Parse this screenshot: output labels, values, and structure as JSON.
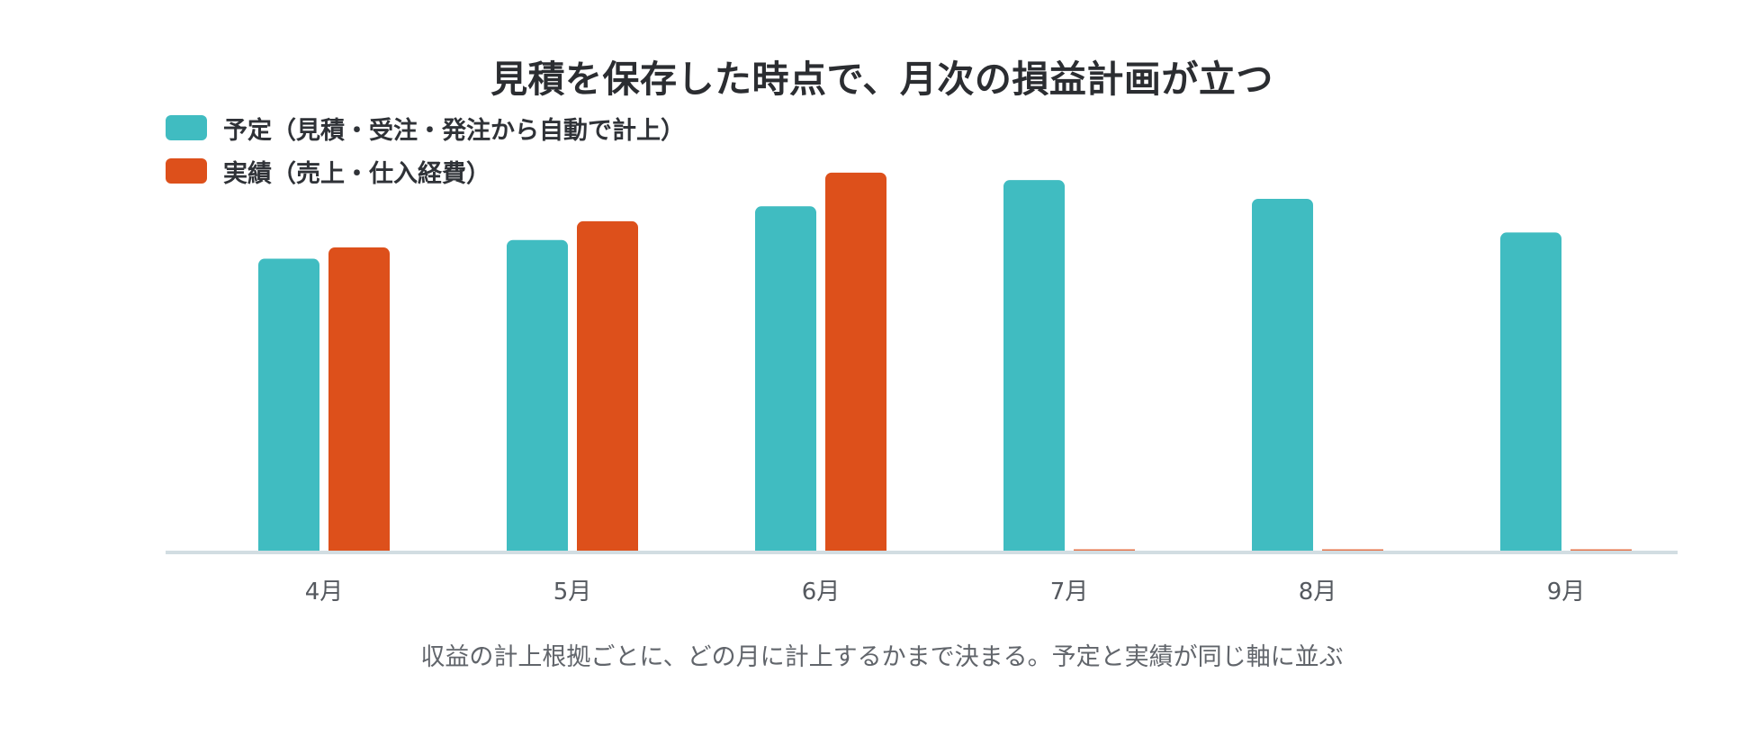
{
  "chart_data": {
    "type": "bar",
    "title": "見積を保存した時点で、月次の損益計画が立つ",
    "subtitle": "収益の計上根拠ごとに、どの月に計上するかまで決まる。予定と実績が同じ軸に並ぶ",
    "categories": [
      "4月",
      "5月",
      "6月",
      "7月",
      "8月",
      "9月"
    ],
    "series": [
      {
        "name": "予定（見積・受注・発注から自動で計上）",
        "color": "#40bcc1",
        "values": [
          78,
          83,
          92,
          99,
          94,
          85
        ]
      },
      {
        "name": "実績（売上・仕入経費）",
        "color": "#dd501b",
        "values": [
          81,
          88,
          101,
          0,
          0,
          0
        ]
      }
    ],
    "ylim": [
      0,
      100
    ],
    "xlabel": "",
    "ylabel": "",
    "grid": false,
    "legend_position": "top-left",
    "axis_color": "#d2dde2"
  }
}
